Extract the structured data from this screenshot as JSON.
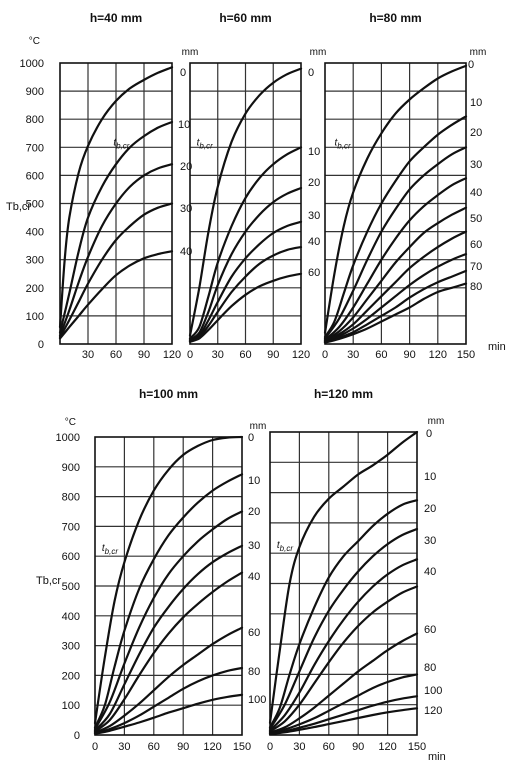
{
  "chart_data": [
    {
      "type": "line",
      "title": "h=40 mm",
      "ylabel": "Tb,cr",
      "yunit": "°C",
      "curve_label_unit": "mm",
      "inner_label": "tb,cr",
      "xlim": [
        0,
        120
      ],
      "ylim": [
        0,
        1000
      ],
      "xticks": [
        "30",
        "60",
        "90",
        "120"
      ],
      "yticks": [
        "0",
        "100",
        "200",
        "300",
        "400",
        "500",
        "600",
        "700",
        "800",
        "900",
        "1000"
      ],
      "grid": true,
      "series": [
        {
          "name": "0",
          "x": [
            0,
            5,
            10,
            20,
            30,
            45,
            60,
            75,
            90,
            105,
            120
          ],
          "y": [
            60,
            300,
            450,
            610,
            705,
            800,
            865,
            910,
            940,
            965,
            985
          ]
        },
        {
          "name": "10",
          "x": [
            0,
            10,
            20,
            30,
            45,
            60,
            75,
            90,
            105,
            120
          ],
          "y": [
            40,
            180,
            330,
            450,
            560,
            640,
            700,
            740,
            770,
            790
          ]
        },
        {
          "name": "20",
          "x": [
            0,
            10,
            20,
            30,
            45,
            60,
            75,
            90,
            105,
            120
          ],
          "y": [
            30,
            120,
            220,
            310,
            420,
            500,
            560,
            600,
            625,
            640
          ]
        },
        {
          "name": "30",
          "x": [
            0,
            10,
            20,
            30,
            45,
            60,
            75,
            90,
            105,
            120
          ],
          "y": [
            25,
            85,
            150,
            215,
            300,
            370,
            420,
            460,
            485,
            500
          ]
        },
        {
          "name": "40",
          "x": [
            0,
            10,
            20,
            30,
            45,
            60,
            75,
            90,
            105,
            120
          ],
          "y": [
            20,
            60,
            100,
            140,
            195,
            245,
            280,
            305,
            320,
            330
          ]
        }
      ]
    },
    {
      "type": "line",
      "title": "h=60 mm",
      "curve_label_unit": "mm",
      "inner_label": "tb,cr",
      "xlim": [
        0,
        120
      ],
      "ylim": [
        0,
        1000
      ],
      "xticks": [
        "0",
        "30",
        "60",
        "90",
        "120"
      ],
      "grid": true,
      "series": [
        {
          "name": "0",
          "x": [
            0,
            10,
            20,
            30,
            45,
            60,
            75,
            90,
            105,
            120
          ],
          "y": [
            30,
            200,
            400,
            560,
            720,
            820,
            885,
            930,
            960,
            980
          ]
        },
        {
          "name": "10",
          "x": [
            0,
            10,
            20,
            30,
            45,
            60,
            75,
            90,
            105,
            120
          ],
          "y": [
            20,
            60,
            170,
            290,
            420,
            520,
            590,
            640,
            675,
            700
          ]
        },
        {
          "name": "20",
          "x": [
            0,
            10,
            20,
            30,
            45,
            60,
            75,
            90,
            105,
            120
          ],
          "y": [
            15,
            40,
            115,
            210,
            320,
            400,
            460,
            505,
            535,
            555
          ]
        },
        {
          "name": "30",
          "x": [
            0,
            10,
            20,
            30,
            45,
            60,
            75,
            90,
            105,
            120
          ],
          "y": [
            12,
            30,
            85,
            150,
            240,
            305,
            355,
            395,
            420,
            435
          ]
        },
        {
          "name": "40",
          "x": [
            0,
            10,
            20,
            30,
            45,
            60,
            75,
            90,
            105,
            120
          ],
          "y": [
            10,
            25,
            65,
            115,
            185,
            240,
            285,
            315,
            335,
            345
          ]
        },
        {
          "name": "60",
          "x": [
            0,
            10,
            20,
            30,
            45,
            60,
            75,
            90,
            105,
            120
          ],
          "y": [
            8,
            20,
            50,
            85,
            135,
            175,
            205,
            225,
            240,
            250
          ]
        }
      ]
    },
    {
      "type": "line",
      "title": "h=80 mm",
      "curve_label_unit": "mm",
      "inner_label": "tb,cr",
      "xlabel": "min",
      "xlim": [
        0,
        150
      ],
      "ylim": [
        0,
        1000
      ],
      "xticks": [
        "0",
        "30",
        "60",
        "90",
        "120",
        "150"
      ],
      "grid": true,
      "series": [
        {
          "name": "0",
          "x": [
            0,
            10,
            20,
            30,
            45,
            60,
            75,
            90,
            105,
            120,
            135,
            150
          ],
          "y": [
            40,
            250,
            420,
            540,
            660,
            750,
            820,
            870,
            910,
            945,
            970,
            990
          ]
        },
        {
          "name": "10",
          "x": [
            0,
            10,
            20,
            30,
            45,
            60,
            75,
            90,
            105,
            120,
            135,
            150
          ],
          "y": [
            25,
            80,
            180,
            280,
            400,
            500,
            580,
            650,
            700,
            745,
            780,
            810
          ]
        },
        {
          "name": "20",
          "x": [
            0,
            15,
            30,
            45,
            60,
            75,
            90,
            105,
            120,
            135,
            150
          ],
          "y": [
            20,
            90,
            190,
            300,
            400,
            480,
            550,
            600,
            640,
            675,
            700
          ]
        },
        {
          "name": "30",
          "x": [
            0,
            15,
            30,
            45,
            60,
            75,
            90,
            105,
            120,
            135,
            150
          ],
          "y": [
            15,
            60,
            130,
            215,
            300,
            375,
            440,
            490,
            530,
            565,
            590
          ]
        },
        {
          "name": "40",
          "x": [
            0,
            15,
            30,
            45,
            60,
            75,
            90,
            105,
            120,
            135,
            150
          ],
          "y": [
            12,
            45,
            95,
            160,
            225,
            290,
            345,
            395,
            430,
            460,
            485
          ]
        },
        {
          "name": "50",
          "x": [
            0,
            15,
            30,
            45,
            60,
            75,
            90,
            105,
            120,
            135,
            150
          ],
          "y": [
            10,
            35,
            70,
            120,
            170,
            220,
            270,
            310,
            345,
            375,
            400
          ]
        },
        {
          "name": "60",
          "x": [
            0,
            15,
            30,
            45,
            60,
            75,
            90,
            105,
            120,
            135,
            150
          ],
          "y": [
            8,
            28,
            55,
            90,
            130,
            170,
            210,
            245,
            275,
            300,
            320
          ]
        },
        {
          "name": "70",
          "x": [
            0,
            15,
            30,
            45,
            60,
            75,
            90,
            105,
            120,
            135,
            150
          ],
          "y": [
            6,
            22,
            42,
            70,
            100,
            130,
            165,
            195,
            220,
            240,
            260
          ]
        },
        {
          "name": "80",
          "x": [
            0,
            15,
            30,
            45,
            60,
            75,
            90,
            105,
            120,
            135,
            150
          ],
          "y": [
            5,
            18,
            35,
            55,
            80,
            105,
            130,
            160,
            185,
            200,
            215
          ]
        }
      ]
    },
    {
      "type": "line",
      "title": "h=100 mm",
      "ylabel": "Tb,cr",
      "yunit": "°C",
      "curve_label_unit": "mm",
      "inner_label": "tb,cr",
      "xlim": [
        0,
        150
      ],
      "ylim": [
        0,
        1000
      ],
      "xticks": [
        "0",
        "30",
        "60",
        "90",
        "120",
        "150"
      ],
      "yticks": [
        "0",
        "100",
        "200",
        "300",
        "400",
        "500",
        "600",
        "700",
        "800",
        "900",
        "1000"
      ],
      "grid": true,
      "series": [
        {
          "name": "0",
          "x": [
            0,
            10,
            20,
            30,
            45,
            60,
            75,
            90,
            105,
            120,
            135,
            150
          ],
          "y": [
            40,
            260,
            450,
            580,
            720,
            820,
            890,
            940,
            970,
            990,
            998,
            1000
          ]
        },
        {
          "name": "10",
          "x": [
            0,
            10,
            20,
            30,
            45,
            60,
            75,
            90,
            105,
            120,
            135,
            150
          ],
          "y": [
            25,
            100,
            230,
            350,
            490,
            590,
            670,
            730,
            780,
            820,
            850,
            875
          ]
        },
        {
          "name": "20",
          "x": [
            0,
            15,
            30,
            45,
            60,
            75,
            90,
            105,
            120,
            135,
            150
          ],
          "y": [
            20,
            110,
            240,
            360,
            460,
            540,
            600,
            650,
            690,
            725,
            750
          ]
        },
        {
          "name": "30",
          "x": [
            0,
            15,
            30,
            45,
            60,
            75,
            90,
            105,
            120,
            135,
            150
          ],
          "y": [
            15,
            70,
            170,
            270,
            360,
            430,
            490,
            540,
            580,
            610,
            635
          ]
        },
        {
          "name": "40",
          "x": [
            0,
            15,
            30,
            45,
            60,
            75,
            90,
            105,
            120,
            135,
            150
          ],
          "y": [
            12,
            50,
            120,
            200,
            275,
            340,
            395,
            440,
            480,
            515,
            545
          ]
        },
        {
          "name": "60",
          "x": [
            0,
            15,
            30,
            45,
            60,
            75,
            90,
            105,
            120,
            135,
            150
          ],
          "y": [
            8,
            30,
            65,
            105,
            150,
            195,
            235,
            270,
            305,
            335,
            360
          ]
        },
        {
          "name": "80",
          "x": [
            0,
            15,
            30,
            45,
            60,
            75,
            90,
            105,
            120,
            135,
            150
          ],
          "y": [
            6,
            20,
            40,
            65,
            95,
            125,
            155,
            180,
            200,
            215,
            225
          ]
        },
        {
          "name": "100",
          "x": [
            0,
            15,
            30,
            45,
            60,
            75,
            90,
            105,
            120,
            135,
            150
          ],
          "y": [
            4,
            14,
            28,
            42,
            58,
            75,
            90,
            105,
            118,
            128,
            135
          ]
        }
      ]
    },
    {
      "type": "line",
      "title": "h=120 mm",
      "curve_label_unit": "mm",
      "inner_label": "tb,cr",
      "xlabel": "min",
      "xlim": [
        0,
        150
      ],
      "ylim": [
        0,
        1000
      ],
      "xticks": [
        "0",
        "30",
        "60",
        "90",
        "120",
        "150"
      ],
      "grid": true,
      "series": [
        {
          "name": "0",
          "x": [
            0,
            10,
            20,
            30,
            45,
            60,
            75,
            90,
            105,
            120,
            135,
            150
          ],
          "y": [
            40,
            280,
            500,
            620,
            720,
            780,
            820,
            860,
            890,
            925,
            965,
            1000
          ]
        },
        {
          "name": "10",
          "x": [
            0,
            10,
            20,
            30,
            45,
            60,
            75,
            90,
            105,
            120,
            135,
            150
          ],
          "y": [
            25,
            90,
            200,
            300,
            420,
            520,
            590,
            640,
            690,
            730,
            760,
            775
          ]
        },
        {
          "name": "20",
          "x": [
            0,
            15,
            30,
            45,
            60,
            75,
            90,
            105,
            120,
            135,
            150
          ],
          "y": [
            20,
            100,
            210,
            320,
            410,
            480,
            540,
            590,
            630,
            660,
            680
          ]
        },
        {
          "name": "30",
          "x": [
            0,
            15,
            30,
            45,
            60,
            75,
            90,
            105,
            120,
            135,
            150
          ],
          "y": [
            15,
            65,
            140,
            230,
            310,
            380,
            440,
            490,
            530,
            560,
            580
          ]
        },
        {
          "name": "40",
          "x": [
            0,
            15,
            30,
            45,
            60,
            75,
            90,
            105,
            120,
            135,
            150
          ],
          "y": [
            12,
            45,
            100,
            170,
            240,
            305,
            360,
            405,
            440,
            470,
            490
          ]
        },
        {
          "name": "60",
          "x": [
            0,
            15,
            30,
            45,
            60,
            75,
            90,
            105,
            120,
            135,
            150
          ],
          "y": [
            8,
            25,
            55,
            90,
            130,
            170,
            210,
            245,
            280,
            310,
            335
          ]
        },
        {
          "name": "80",
          "x": [
            0,
            15,
            30,
            45,
            60,
            75,
            90,
            105,
            120,
            135,
            150
          ],
          "y": [
            6,
            18,
            35,
            55,
            80,
            105,
            130,
            155,
            175,
            190,
            200
          ]
        },
        {
          "name": "100",
          "x": [
            0,
            15,
            30,
            45,
            60,
            75,
            90,
            105,
            120,
            135,
            150
          ],
          "y": [
            4,
            12,
            24,
            37,
            52,
            67,
            82,
            97,
            110,
            120,
            128
          ]
        },
        {
          "name": "120",
          "x": [
            0,
            15,
            30,
            45,
            60,
            75,
            90,
            105,
            120,
            135,
            150
          ],
          "y": [
            3,
            9,
            17,
            26,
            36,
            46,
            56,
            66,
            75,
            82,
            88
          ]
        }
      ]
    }
  ]
}
